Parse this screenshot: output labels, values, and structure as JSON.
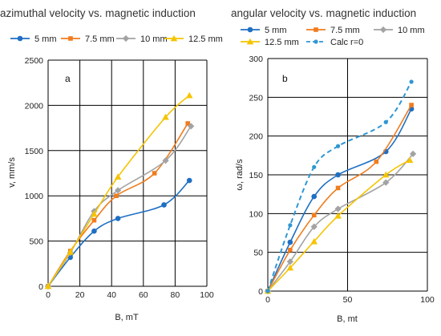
{
  "chart_data": [
    {
      "type": "line",
      "title": "azimuthal velocity vs. magnetic induction",
      "panel_label": "a",
      "xlabel": "B, mT",
      "ylabel": "v, mm/s",
      "xlim": [
        0,
        100
      ],
      "ylim": [
        0,
        2500
      ],
      "xticks": [
        "0",
        "20",
        "40",
        "60",
        "80",
        "100"
      ],
      "yticks": [
        "0",
        "500",
        "1000",
        "1500",
        "2000",
        "2500"
      ],
      "grid": true,
      "legend": "top",
      "series": [
        {
          "name": "5 mm",
          "color": "#1f6fc4",
          "marker": "circle",
          "dash": false,
          "x": [
            0,
            14,
            29,
            44,
            73,
            89
          ],
          "y": [
            0,
            320,
            610,
            750,
            900,
            1170
          ]
        },
        {
          "name": "7.5 mm",
          "color": "#f07c1e",
          "marker": "square",
          "dash": false,
          "x": [
            0,
            14,
            29,
            43,
            67,
            88
          ],
          "y": [
            0,
            390,
            730,
            1000,
            1250,
            1800
          ]
        },
        {
          "name": "10 mm",
          "color": "#a3a3a3",
          "marker": "diamond",
          "dash": false,
          "x": [
            0,
            14,
            29,
            44,
            74,
            90
          ],
          "y": [
            0,
            370,
            830,
            1060,
            1390,
            1770
          ]
        },
        {
          "name": "12.5 mm",
          "color": "#f5c400",
          "marker": "triangle",
          "dash": false,
          "x": [
            0,
            14,
            29,
            44,
            74,
            89
          ],
          "y": [
            0,
            380,
            800,
            1210,
            1870,
            2110
          ]
        }
      ]
    },
    {
      "type": "line",
      "title": "angular velocity vs. magnetic induction",
      "panel_label": "b",
      "xlabel": "B, mt",
      "ylabel": "ω, rad/s",
      "xlim": [
        0,
        100
      ],
      "ylim": [
        0,
        300
      ],
      "xticks": [
        "0",
        "50",
        "100"
      ],
      "yticks": [
        "0",
        "50",
        "100",
        "150",
        "200",
        "250",
        "300"
      ],
      "grid": true,
      "legend": "top",
      "series": [
        {
          "name": "5 mm",
          "color": "#1f6fc4",
          "marker": "circle",
          "dash": false,
          "x": [
            0,
            14,
            29,
            44,
            74,
            90
          ],
          "y": [
            0,
            63,
            122,
            150,
            180,
            235
          ]
        },
        {
          "name": "7.5 mm",
          "color": "#f07c1e",
          "marker": "square",
          "dash": false,
          "x": [
            0,
            14,
            29,
            44,
            68,
            90
          ],
          "y": [
            0,
            53,
            98,
            133,
            167,
            240
          ]
        },
        {
          "name": "10 mm",
          "color": "#a3a3a3",
          "marker": "diamond",
          "dash": false,
          "x": [
            0,
            14,
            29,
            44,
            74,
            91
          ],
          "y": [
            0,
            38,
            83,
            106,
            140,
            177
          ]
        },
        {
          "name": "12.5 mm",
          "color": "#f5c400",
          "marker": "triangle",
          "dash": false,
          "x": [
            0,
            14,
            29,
            44,
            74,
            89
          ],
          "y": [
            0,
            30,
            64,
            97,
            150,
            169
          ]
        },
        {
          "name": "Calc r=0",
          "color": "#2f97d4",
          "marker": "circle",
          "dash": true,
          "x": [
            0,
            14,
            29,
            44,
            74,
            90
          ],
          "y": [
            0,
            85,
            160,
            187,
            218,
            270
          ]
        }
      ]
    }
  ]
}
